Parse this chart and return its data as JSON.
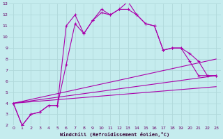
{
  "xlabel": "Windchill (Refroidissement éolien,°C)",
  "bg_color": "#c5ecee",
  "grid_color": "#b0d8da",
  "line_color": "#aa00aa",
  "xlim": [
    -0.5,
    23.5
  ],
  "ylim": [
    2,
    13
  ],
  "x_ticks": [
    0,
    1,
    2,
    3,
    4,
    5,
    6,
    7,
    8,
    9,
    10,
    11,
    12,
    13,
    14,
    15,
    16,
    17,
    18,
    19,
    20,
    21,
    22,
    23
  ],
  "y_ticks": [
    2,
    3,
    4,
    5,
    6,
    7,
    8,
    9,
    10,
    11,
    12,
    13
  ],
  "series1_x": [
    0,
    1,
    2,
    3,
    4,
    5,
    6,
    7,
    8,
    9,
    10,
    11,
    12,
    13,
    14,
    15,
    16,
    17,
    18,
    19,
    20,
    21,
    22,
    23
  ],
  "series1_y": [
    4.0,
    2.0,
    3.0,
    3.2,
    3.8,
    3.8,
    11.0,
    12.0,
    10.3,
    11.5,
    12.2,
    12.0,
    12.5,
    13.2,
    12.0,
    11.2,
    11.0,
    8.8,
    9.0,
    9.0,
    7.8,
    6.5,
    6.5,
    6.5
  ],
  "series2_x": [
    0,
    1,
    2,
    3,
    4,
    5,
    6,
    7,
    8,
    9,
    10,
    11,
    12,
    13,
    14,
    15,
    16,
    17,
    18,
    19,
    20,
    21,
    22,
    23
  ],
  "series2_y": [
    4.0,
    2.0,
    3.0,
    3.2,
    3.8,
    3.8,
    7.5,
    11.2,
    10.3,
    11.5,
    12.5,
    12.0,
    12.5,
    12.5,
    12.0,
    11.2,
    11.0,
    8.8,
    9.0,
    9.0,
    8.5,
    7.8,
    6.5,
    6.5
  ],
  "series3_x": [
    0,
    23
  ],
  "series3_y": [
    4.0,
    8.0
  ],
  "series4_x": [
    0,
    23
  ],
  "series4_y": [
    4.0,
    6.5
  ],
  "series5_x": [
    0,
    23
  ],
  "series5_y": [
    4.0,
    5.5
  ]
}
